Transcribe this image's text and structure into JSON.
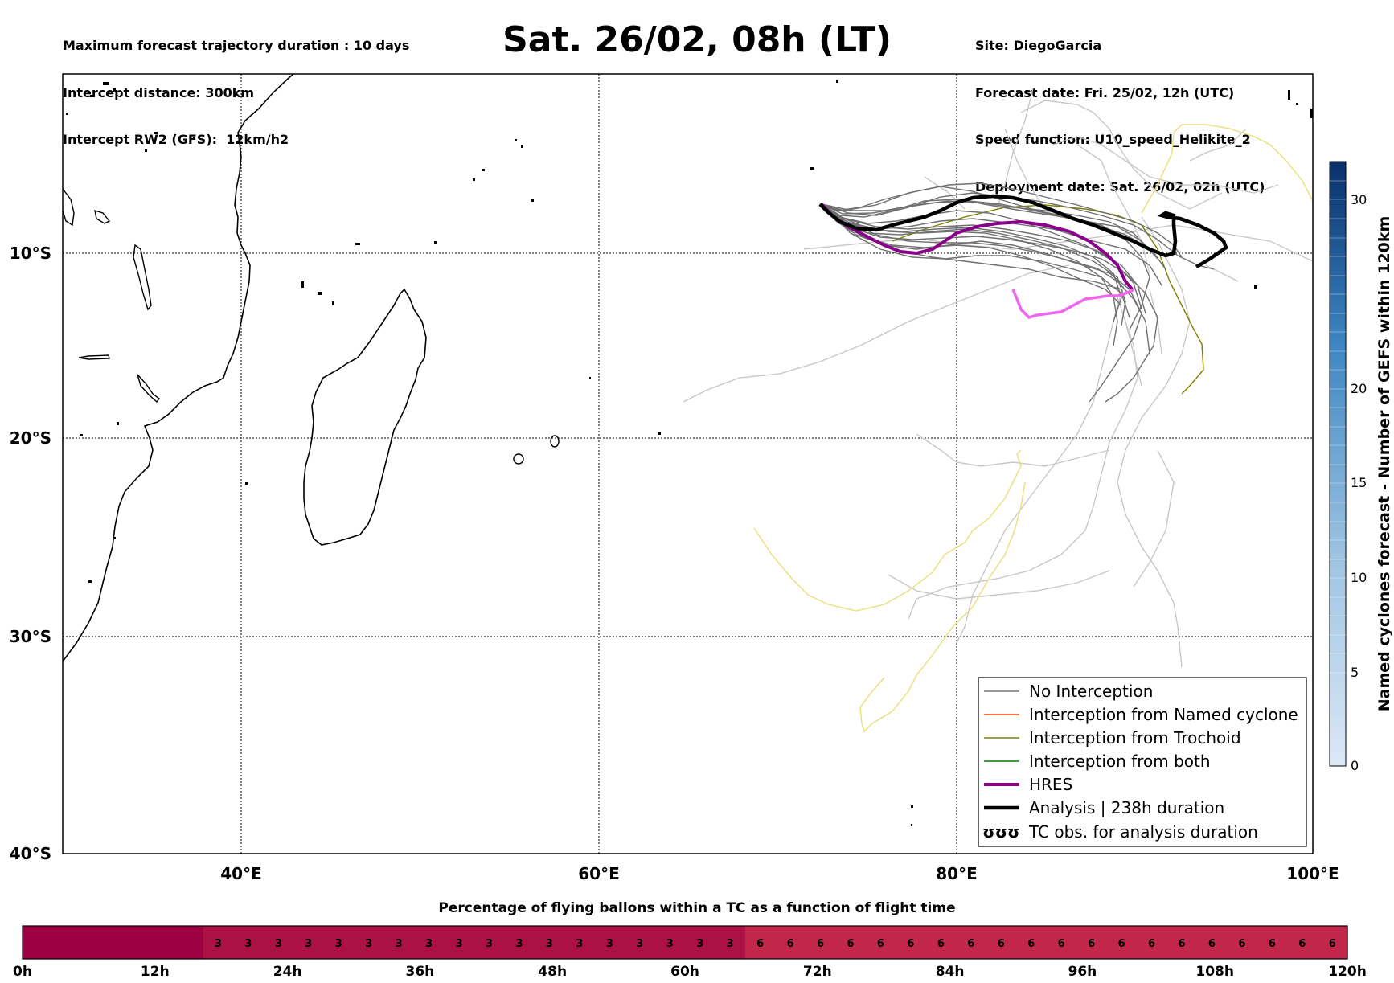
{
  "header": {
    "left_lines": [
      "Maximum forecast trajectory duration : 10 days",
      "Intercept distance: 300km",
      "Intercept RW2 (GFS):  12km/h2"
    ],
    "title": "Sat. 26/02, 08h (LT)",
    "right_lines": [
      "Site: DiegoGarcia",
      "Forecast date: Fri. 25/02, 12h (UTC)",
      "Speed function: U10_speed_Helikite_2",
      "Deployment date: Sat. 26/02, 02h (UTC)"
    ]
  },
  "map": {
    "lon_labels": [
      "40°E",
      "60°E",
      "80°E",
      "100°E"
    ],
    "lat_labels": [
      "10°S",
      "20°S",
      "30°S",
      "40°S"
    ]
  },
  "legend": {
    "items": [
      {
        "label": "No Interception",
        "color": "#777777",
        "style": "thin"
      },
      {
        "label": "Interception from Named cyclone",
        "color": "#ff4500",
        "style": "thin"
      },
      {
        "label": "Interception from Trochoid",
        "color": "#808000",
        "style": "thin"
      },
      {
        "label": "Interception from both",
        "color": "#008000",
        "style": "thin"
      },
      {
        "label": "HRES",
        "color": "#8b008b",
        "style": "thick"
      },
      {
        "label": "Analysis | 238h duration",
        "color": "#000000",
        "style": "thick"
      },
      {
        "label": "TC obs. for analysis duration",
        "color": "#000000",
        "style": "symbol",
        "symbol": "ʊʊʊ"
      }
    ]
  },
  "colorbar": {
    "label": "Named cyclones forecast - Number of GEFS within 120km",
    "ticks": [
      "0",
      "5",
      "10",
      "15",
      "20",
      "30"
    ],
    "color_low": "#dbe8f7",
    "color_high": "#08306b"
  },
  "bottom": {
    "title": "Percentage of flying ballons within a TC as a function of flight time",
    "cells": [
      "",
      "",
      "",
      "",
      "",
      "",
      "3",
      "3",
      "3",
      "3",
      "3",
      "3",
      "3",
      "3",
      "3",
      "3",
      "3",
      "3",
      "3",
      "3",
      "3",
      "3",
      "3",
      "3",
      "6",
      "6",
      "6",
      "6",
      "6",
      "6",
      "6",
      "6",
      "6",
      "6",
      "6",
      "6",
      "6",
      "6",
      "6",
      "6",
      "6",
      "6",
      "6",
      "6"
    ],
    "cell_colors": {
      "0": "#9e0142",
      "3": "#ab1145",
      "6": "#c2264a"
    },
    "time_labels": [
      "0h",
      "12h",
      "24h",
      "36h",
      "48h",
      "60h",
      "72h",
      "84h",
      "96h",
      "108h",
      "120h"
    ]
  }
}
